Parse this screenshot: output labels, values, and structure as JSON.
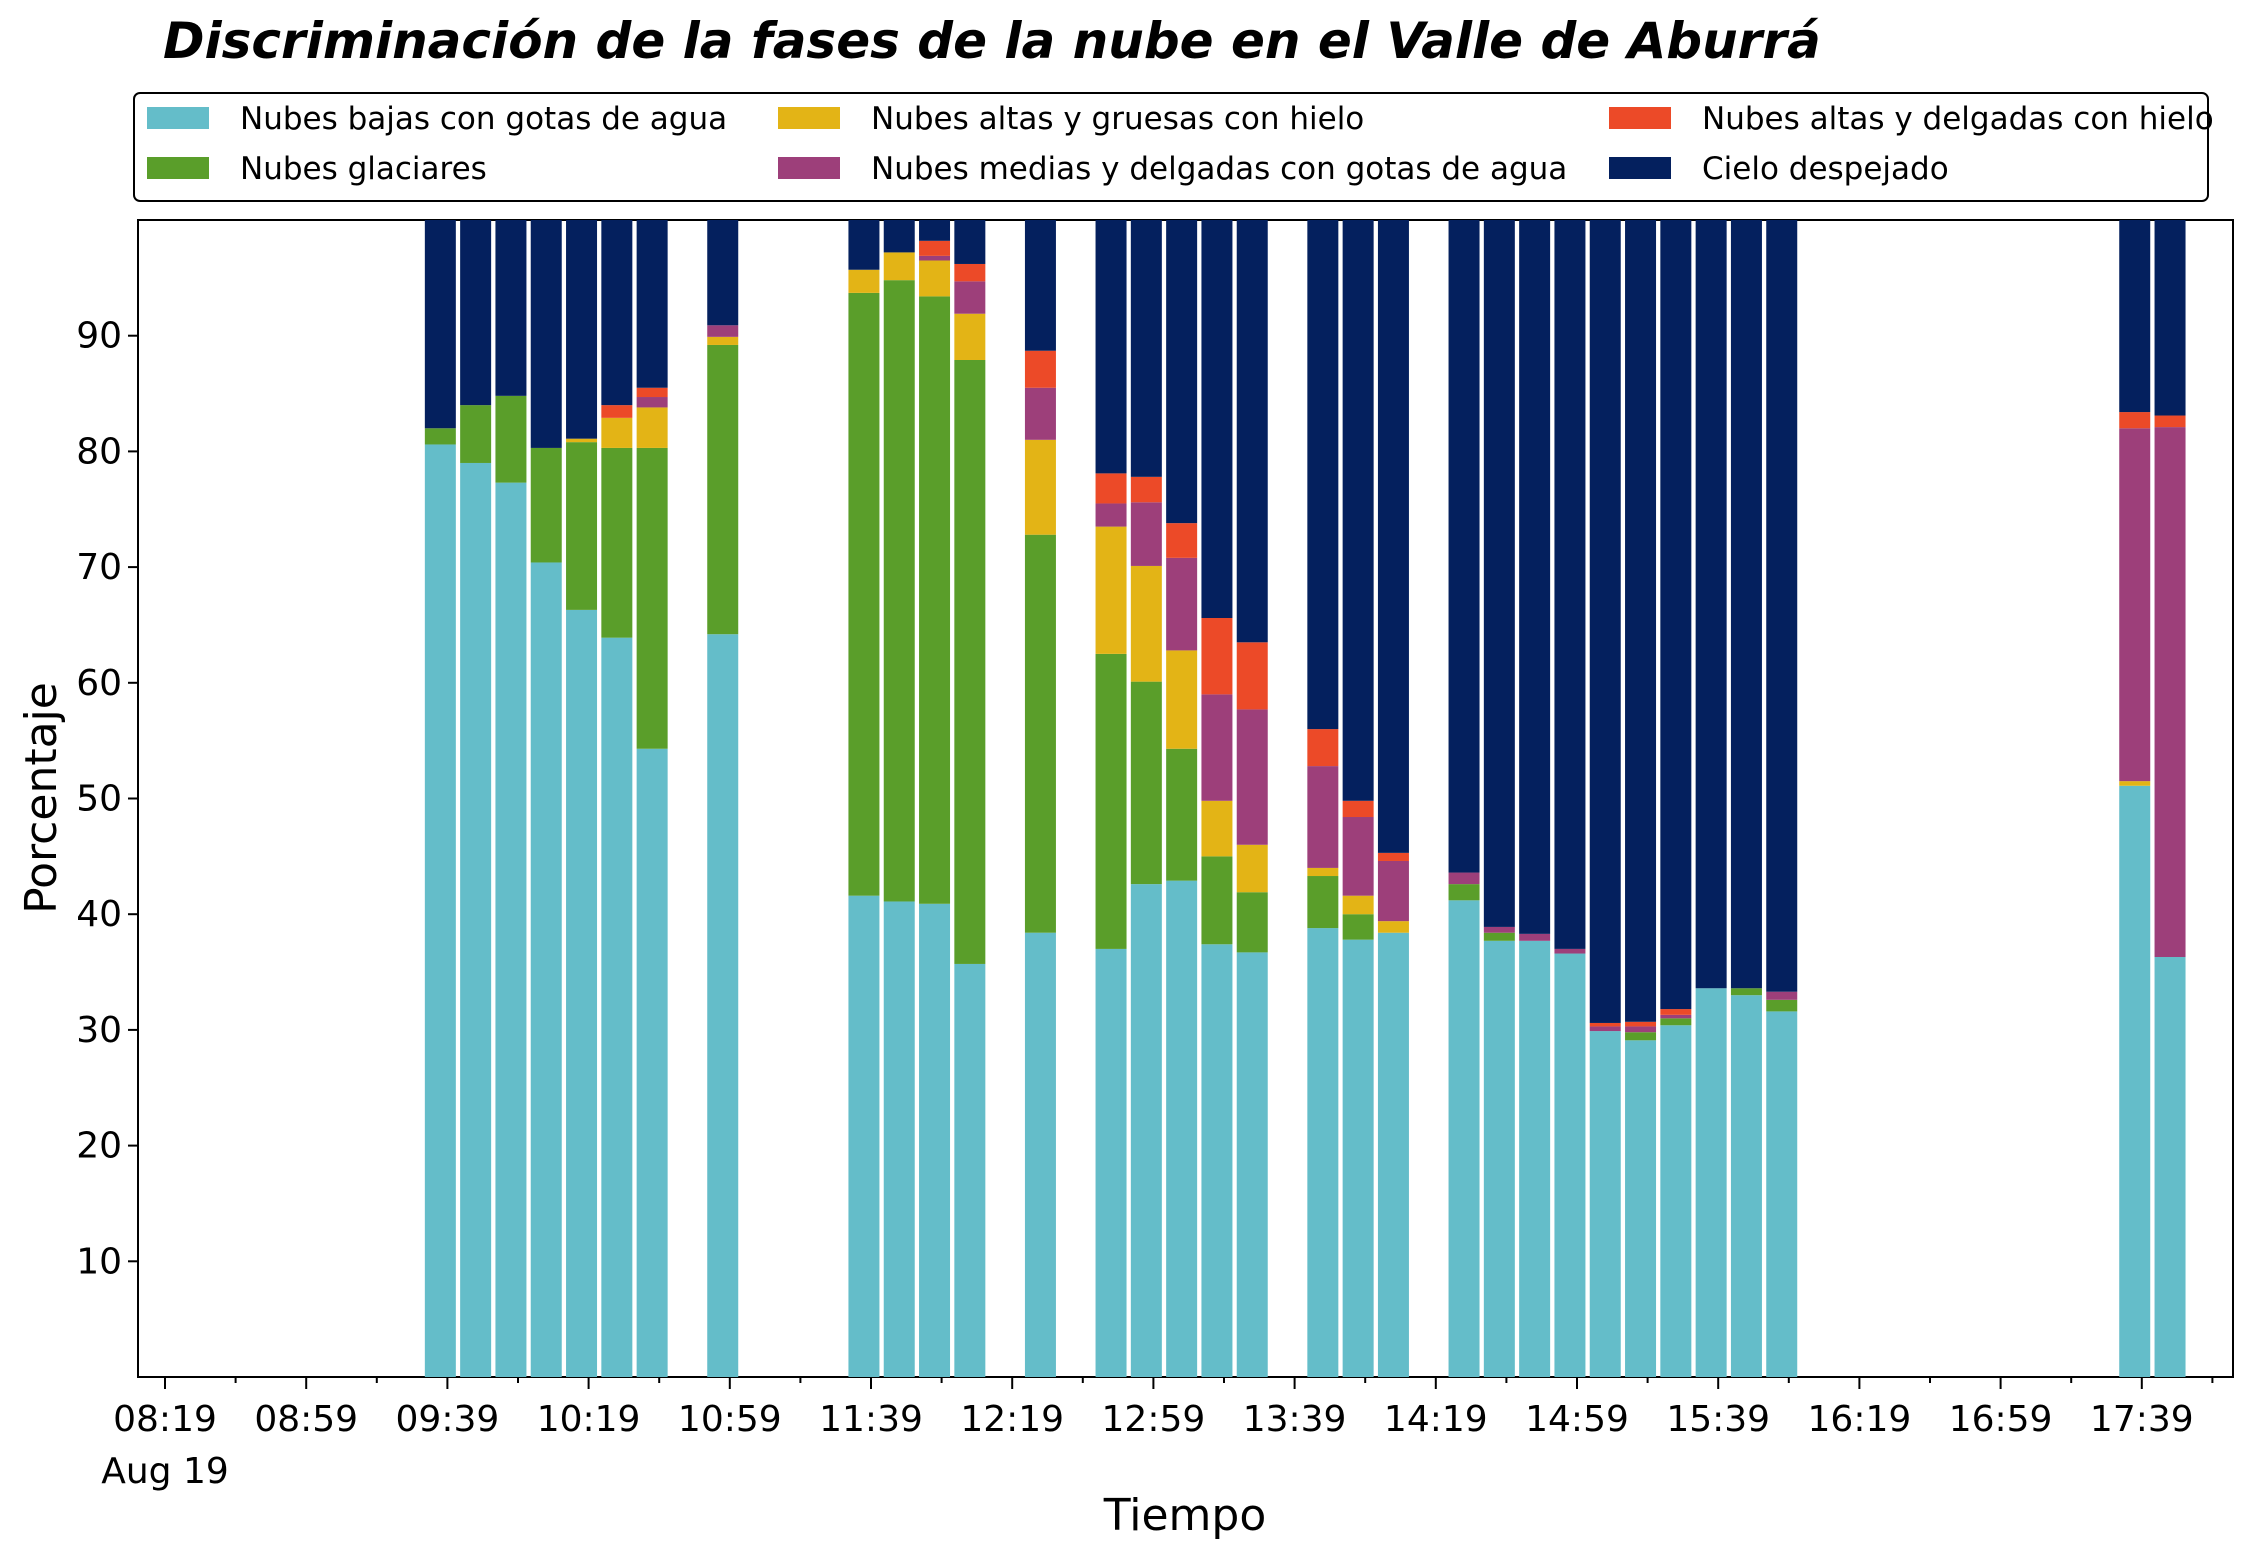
{
  "chart_data": {
    "type": "bar",
    "stacked": true,
    "title": "Discriminación de la fases de la nube en el Valle de Aburrá",
    "xlabel": "Tiempo",
    "ylabel": "Porcentaje",
    "ylim": [
      0,
      100
    ],
    "yticks": [
      10,
      20,
      30,
      40,
      50,
      60,
      70,
      80,
      90
    ],
    "xlim": [
      0,
      59
    ],
    "xticks": [
      {
        "pos": 0,
        "label": "08:19",
        "sublabel": "Aug 19"
      },
      {
        "pos": 4,
        "label": "08:59"
      },
      {
        "pos": 8,
        "label": "09:39"
      },
      {
        "pos": 12,
        "label": "10:19"
      },
      {
        "pos": 16,
        "label": "10:59"
      },
      {
        "pos": 20,
        "label": "11:39"
      },
      {
        "pos": 24,
        "label": "12:19"
      },
      {
        "pos": 28,
        "label": "12:59"
      },
      {
        "pos": 32,
        "label": "13:39"
      },
      {
        "pos": 36,
        "label": "14:19"
      },
      {
        "pos": 40,
        "label": "14:59"
      },
      {
        "pos": 44,
        "label": "15:39"
      },
      {
        "pos": 48,
        "label": "16:19"
      },
      {
        "pos": 52,
        "label": "16:59"
      },
      {
        "pos": 56,
        "label": "17:39"
      }
    ],
    "minor_tick_step": 2,
    "grid": false,
    "legend_position": "top",
    "series": [
      {
        "name": "Nubes bajas con gotas de agua",
        "color": "#64bdc9"
      },
      {
        "name": "Nubes glaciares",
        "color": "#5a9e2a"
      },
      {
        "name": "Nubes altas y gruesas con hielo",
        "color": "#e3b416"
      },
      {
        "name": "Nubes medias y delgadas con gotas de agua",
        "color": "#9d3f7a"
      },
      {
        "name": "Nubes altas y delgadas con hielo",
        "color": "#ec4a28"
      },
      {
        "name": "Cielo despejado",
        "color": "#04205e"
      }
    ],
    "bars": [
      {
        "x": 7.8,
        "values": [
          80.6,
          1.4,
          0,
          0,
          0,
          18.0
        ]
      },
      {
        "x": 8.8,
        "values": [
          79.0,
          5.0,
          0,
          0,
          0,
          16.0
        ]
      },
      {
        "x": 9.8,
        "values": [
          77.3,
          7.5,
          0,
          0,
          0,
          15.2
        ]
      },
      {
        "x": 10.8,
        "values": [
          70.4,
          9.9,
          0,
          0,
          0,
          19.7
        ]
      },
      {
        "x": 11.8,
        "values": [
          66.3,
          14.5,
          0.3,
          0,
          0,
          18.9
        ]
      },
      {
        "x": 12.8,
        "values": [
          63.9,
          16.4,
          2.6,
          0,
          1.1,
          16.0
        ]
      },
      {
        "x": 13.8,
        "values": [
          54.3,
          26.0,
          3.5,
          0.9,
          0.8,
          14.5
        ]
      },
      {
        "x": 15.8,
        "values": [
          64.2,
          25.0,
          0.7,
          1.0,
          0,
          9.1
        ]
      },
      {
        "x": 19.8,
        "values": [
          41.6,
          52.1,
          2.0,
          0,
          0,
          4.3
        ]
      },
      {
        "x": 20.8,
        "values": [
          41.1,
          53.7,
          2.4,
          0,
          0,
          2.8
        ]
      },
      {
        "x": 21.8,
        "values": [
          40.9,
          52.5,
          3.1,
          0.4,
          1.3,
          1.8
        ]
      },
      {
        "x": 22.8,
        "values": [
          35.7,
          52.2,
          4.0,
          2.8,
          1.5,
          3.8
        ]
      },
      {
        "x": 24.8,
        "values": [
          38.4,
          34.4,
          8.2,
          4.5,
          3.2,
          11.3
        ]
      },
      {
        "x": 26.8,
        "values": [
          37.0,
          25.5,
          11.0,
          2.0,
          2.6,
          21.9
        ]
      },
      {
        "x": 27.8,
        "values": [
          42.6,
          17.5,
          10.0,
          5.5,
          2.2,
          22.2
        ]
      },
      {
        "x": 28.8,
        "values": [
          42.9,
          11.4,
          8.5,
          8.0,
          3.0,
          26.2
        ]
      },
      {
        "x": 29.8,
        "values": [
          37.4,
          7.6,
          4.8,
          9.2,
          6.6,
          34.4
        ]
      },
      {
        "x": 30.8,
        "values": [
          36.7,
          5.2,
          4.1,
          11.7,
          5.8,
          36.5
        ]
      },
      {
        "x": 32.8,
        "values": [
          38.8,
          4.5,
          0.7,
          8.8,
          3.2,
          44.0
        ]
      },
      {
        "x": 33.8,
        "values": [
          37.8,
          2.2,
          1.6,
          6.8,
          1.4,
          50.2
        ]
      },
      {
        "x": 34.8,
        "values": [
          38.4,
          0,
          1.0,
          5.2,
          0.7,
          54.7
        ]
      },
      {
        "x": 36.8,
        "values": [
          41.2,
          1.4,
          0,
          1.0,
          0,
          56.4
        ]
      },
      {
        "x": 37.8,
        "values": [
          37.7,
          0.7,
          0,
          0.5,
          0,
          61.1
        ]
      },
      {
        "x": 38.8,
        "values": [
          37.7,
          0,
          0,
          0.6,
          0,
          61.7
        ]
      },
      {
        "x": 39.8,
        "values": [
          36.6,
          0,
          0,
          0.4,
          0,
          63.0
        ]
      },
      {
        "x": 40.8,
        "values": [
          29.9,
          0,
          0,
          0.4,
          0.3,
          69.4
        ]
      },
      {
        "x": 41.8,
        "values": [
          29.1,
          0.7,
          0,
          0.5,
          0.4,
          69.3
        ]
      },
      {
        "x": 42.8,
        "values": [
          30.4,
          0.6,
          0,
          0.3,
          0.5,
          68.2
        ]
      },
      {
        "x": 43.8,
        "values": [
          33.6,
          0,
          0,
          0,
          0,
          66.4
        ]
      },
      {
        "x": 44.8,
        "values": [
          33.0,
          0.6,
          0,
          0,
          0,
          66.4
        ]
      },
      {
        "x": 45.8,
        "values": [
          31.6,
          1.0,
          0,
          0.7,
          0,
          66.7
        ]
      },
      {
        "x": 55.8,
        "values": [
          51.1,
          0,
          0.4,
          30.5,
          1.4,
          16.6
        ]
      },
      {
        "x": 56.8,
        "values": [
          36.3,
          0,
          0,
          45.8,
          1.0,
          16.9
        ]
      }
    ]
  }
}
